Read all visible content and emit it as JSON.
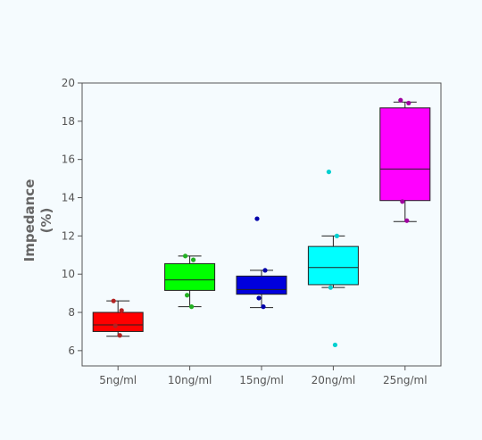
{
  "chart_data": {
    "type": "box",
    "title": "",
    "xlabel": "",
    "ylabel": "Impedance",
    "ylabel_unit": "(%)",
    "ylim": [
      5.2,
      20
    ],
    "yticks": [
      6,
      8,
      10,
      12,
      14,
      16,
      18,
      20
    ],
    "ytick_labels": [
      "6",
      "8",
      "10",
      "12",
      "14",
      "16",
      "18",
      "20"
    ],
    "grid": false,
    "categories": [
      "5ng/ml",
      "10ng/ml",
      "15ng/ml",
      "20ng/ml",
      "25ng/ml"
    ],
    "series": [
      {
        "category": "5ng/ml",
        "color": "#ff0000",
        "point_color": "#b22222",
        "whisker_min": 6.75,
        "q1": 7.0,
        "median": 7.35,
        "q3": 8.0,
        "whisker_max": 8.6,
        "points": [
          8.6,
          8.1,
          7.3,
          6.8
        ]
      },
      {
        "category": "10ng/ml",
        "color": "#00ff00",
        "point_color": "#22b022",
        "whisker_min": 8.3,
        "q1": 9.15,
        "median": 9.7,
        "q3": 10.55,
        "whisker_max": 10.95,
        "points": [
          10.95,
          10.75,
          8.9,
          8.3
        ]
      },
      {
        "category": "15ng/ml",
        "color": "#0000dd",
        "point_color": "#0000aa",
        "whisker_min": 8.25,
        "q1": 8.95,
        "median": 9.2,
        "q3": 9.9,
        "whisker_max": 10.2,
        "points": [
          12.9,
          10.2,
          8.75,
          8.3
        ]
      },
      {
        "category": "20ng/ml",
        "color": "#00ffff",
        "point_color": "#00d0d0",
        "whisker_min": 9.3,
        "q1": 9.45,
        "median": 10.35,
        "q3": 11.45,
        "whisker_max": 12.0,
        "points": [
          15.35,
          12.0,
          9.3,
          6.3
        ]
      },
      {
        "category": "25ng/ml",
        "color": "#ff00ff",
        "point_color": "#a000a0",
        "whisker_min": 12.75,
        "q1": 13.85,
        "median": 15.5,
        "q3": 18.7,
        "whisker_max": 19.0,
        "points": [
          19.1,
          18.95,
          13.8,
          12.8
        ]
      }
    ]
  }
}
